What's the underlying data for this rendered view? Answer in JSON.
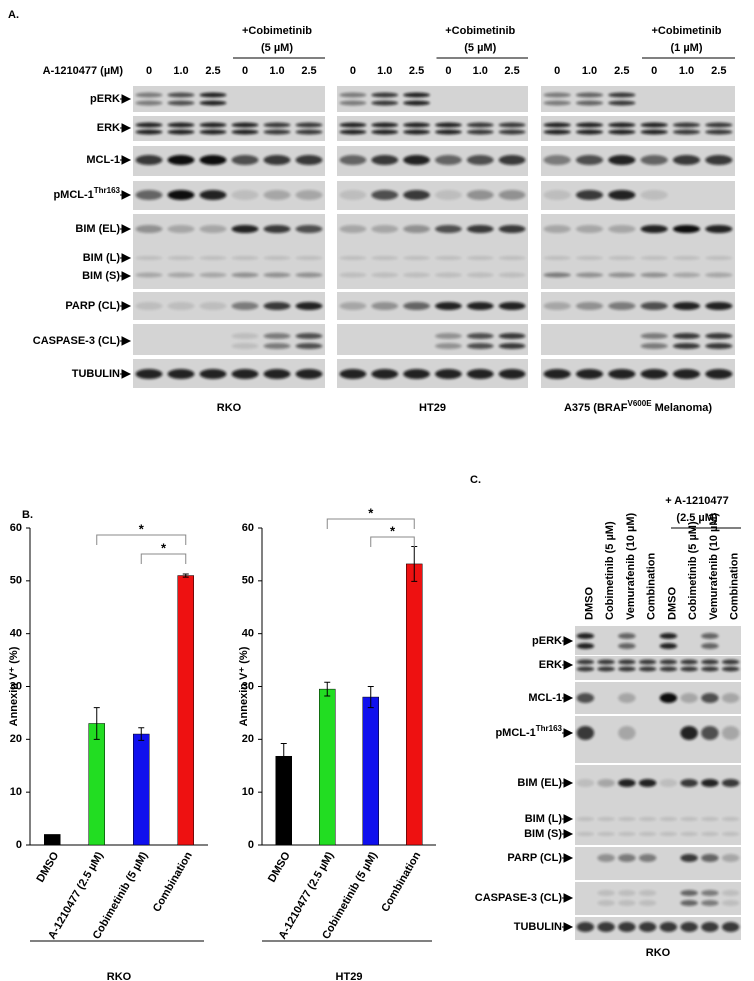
{
  "panel_a": {
    "label": "A.",
    "dose_label": "A-1210477 (µM)",
    "blocks": [
      {
        "name": "RKO",
        "treatment": [
          "+Cobimetinib",
          "(5 µM)"
        ],
        "doses": [
          "0",
          "1.0",
          "2.5",
          "0",
          "1.0",
          "2.5"
        ]
      },
      {
        "name": "HT29",
        "treatment": [
          "+Cobimetinib",
          "(5 µM)"
        ],
        "doses": [
          "0",
          "1.0",
          "2.5",
          "0",
          "1.0",
          "2.5"
        ]
      },
      {
        "name": "A375 (BRAF",
        "name_sup": "V600E",
        "name_tail": " Melanoma)",
        "treatment": [
          "+Cobimetinib",
          "(1 µM)"
        ],
        "doses": [
          "0",
          "1.0",
          "2.5",
          "0",
          "1.0",
          "2.5"
        ]
      }
    ],
    "rows": [
      {
        "text": "pERK"
      },
      {
        "text": "ERK"
      },
      {
        "text": "MCL-1"
      },
      {
        "text": "pMCL-1",
        "sup": "Thr163"
      },
      {
        "text": "BIM (EL)"
      },
      {
        "text": "BIM (L)"
      },
      {
        "text": "BIM (S)"
      },
      {
        "text": "PARP (CL)"
      },
      {
        "text": "CASPASE-3 (CL)"
      },
      {
        "text": "TUBULIN"
      }
    ]
  },
  "panel_b_label": "B.",
  "chart_data": [
    {
      "type": "bar",
      "ylabel": "Annexin V⁺ (%)",
      "xlabel": "RKO",
      "categories": [
        "DMSO",
        "A-1210477 (2.5 µM)",
        "Cobimetinib (5 µM)",
        "Combination"
      ],
      "values": [
        2,
        23,
        21,
        51
      ],
      "errors": [
        0,
        3,
        1.2,
        0.3
      ],
      "colors": [
        "#000000",
        "#22dd22",
        "#1010ee",
        "#ee1111"
      ],
      "ylim": [
        0,
        60
      ],
      "yticks": [
        0,
        10,
        20,
        30,
        40,
        50,
        60
      ],
      "annotations": [
        "*",
        "*"
      ]
    },
    {
      "type": "bar",
      "ylabel": "Annexin V⁺ (%)",
      "xlabel": "HT29",
      "categories": [
        "DMSO",
        "A-1210477 (2.5 µM)",
        "Cobimetinib (5 µM)",
        "Combination"
      ],
      "values": [
        16.8,
        29.5,
        28,
        53.2
      ],
      "errors": [
        2.4,
        1.3,
        2,
        3.3
      ],
      "colors": [
        "#000000",
        "#22dd22",
        "#1010ee",
        "#ee1111"
      ],
      "ylim": [
        0,
        60
      ],
      "yticks": [
        0,
        10,
        20,
        30,
        40,
        50,
        60
      ],
      "annotations": [
        "*",
        "*"
      ]
    }
  ],
  "panel_c": {
    "label": "C.",
    "treatment": [
      "+ A-1210477",
      "(2.5 µM)"
    ],
    "lanes": [
      "DMSO",
      "Cobimetinib (5 µM)",
      "Vemurafenib (10 µM)",
      "Combination",
      "DMSO",
      "Cobimetinib (5 µM)",
      "Vemurafenib (10 µM)",
      "Combination"
    ],
    "rows": [
      {
        "text": "pERK"
      },
      {
        "text": "ERK"
      },
      {
        "text": "MCL-1"
      },
      {
        "text": "pMCL-1",
        "sup": "Thr163"
      },
      {
        "text": "BIM (EL)"
      },
      {
        "text": "BIM (L)"
      },
      {
        "text": "BIM (S)"
      },
      {
        "text": "PARP (CL)"
      },
      {
        "text": "CASPASE-3 (CL)"
      },
      {
        "text": "TUBULIN"
      }
    ],
    "name": "RKO"
  }
}
